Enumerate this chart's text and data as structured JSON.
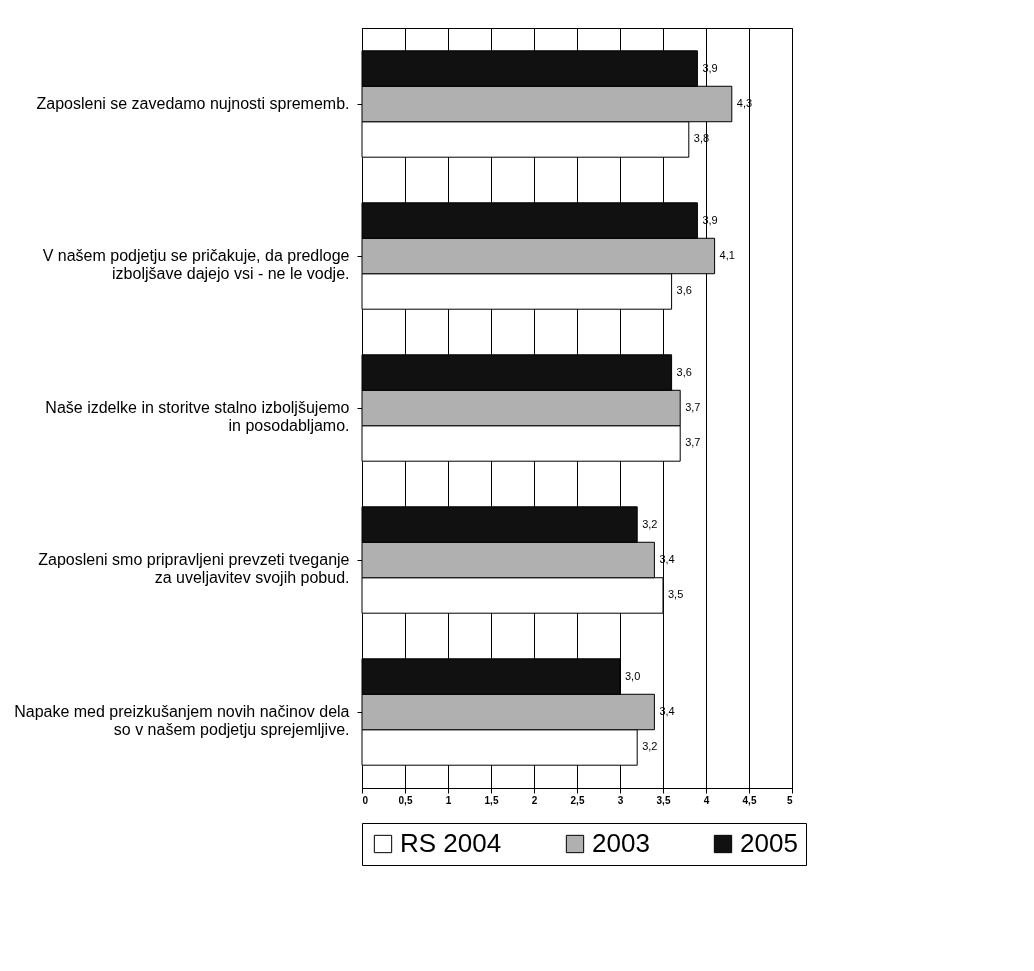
{
  "chart_data": {
    "type": "bar",
    "orientation": "horizontal",
    "categories": [
      "Zaposleni se zavedamo nujnosti sprememb.",
      "V našem podjetju se pričakuje, da predloge izboljšave dajejo vsi - ne le vodje.",
      "Naše izdelke in storitve stalno izboljšujemo in posodabljamo.",
      "Zaposleni smo pripravljeni prevzeti tveganje za uveljavitev svojih pobud.",
      "Napake med preizkušanjem novih načinov dela so v našem podjetju sprejemljive."
    ],
    "series": [
      {
        "name": "RS 2004",
        "color": "#ffffff",
        "values": [
          3.8,
          3.6,
          3.7,
          3.5,
          3.2
        ],
        "value_labels": [
          "3,8",
          "3,6",
          "3,7",
          "3,5",
          "3,2"
        ]
      },
      {
        "name": "2003",
        "color": "#b0b0b0",
        "values": [
          4.3,
          4.1,
          3.7,
          3.4,
          3.4
        ],
        "value_labels": [
          "4,3",
          "4,1",
          "3,7",
          "3,4",
          "3,4"
        ]
      },
      {
        "name": "2005",
        "color": "#111111",
        "values": [
          3.9,
          3.9,
          3.6,
          3.2,
          3.0
        ],
        "value_labels": [
          "3,9",
          "3,9",
          "3,6",
          "3,2",
          "3,0"
        ]
      }
    ],
    "xlim": [
      0,
      5
    ],
    "xticks": [
      0,
      {
        "value": 0.5,
        "label": "0,5"
      },
      1,
      {
        "value": 1.5,
        "label": "1,5"
      },
      2,
      {
        "value": 2.5,
        "label": "2,5"
      },
      3,
      {
        "value": 3.5,
        "label": "3,5"
      },
      4,
      {
        "value": 4.5,
        "label": "4,5"
      },
      5
    ],
    "grid": "x",
    "legend": "bottom"
  }
}
